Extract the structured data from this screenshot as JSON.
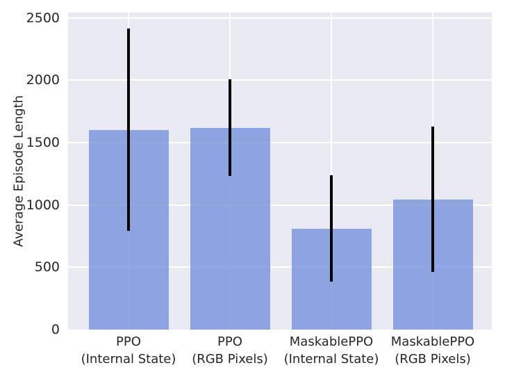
{
  "chart_data": {
    "type": "bar",
    "title": "",
    "xlabel": "",
    "ylabel": "Average Episode Length",
    "categories": [
      "PPO\n(Internal State)",
      "PPO\n(RGB Pixels)",
      "MaskablePPO\n(Internal State)",
      "MaskablePPO\n(RGB Pixels)"
    ],
    "values": [
      1600,
      1615,
      810,
      1045
    ],
    "error_low": [
      790,
      1230,
      385,
      465
    ],
    "error_high": [
      2415,
      2005,
      1240,
      1630
    ],
    "yticks": [
      0,
      500,
      1000,
      1500,
      2000,
      2500
    ],
    "ylim": [
      0,
      2542
    ],
    "grid": true,
    "legend": "none",
    "style": {
      "figure_background": "#FFFFFF",
      "plot_background": "#EAEAF2",
      "grid_color": "#FFFFFF",
      "bar_color": "#7494DC",
      "bar_opacity": 0.8,
      "errorbar_color": "#000000",
      "text_color": "#262626"
    }
  }
}
